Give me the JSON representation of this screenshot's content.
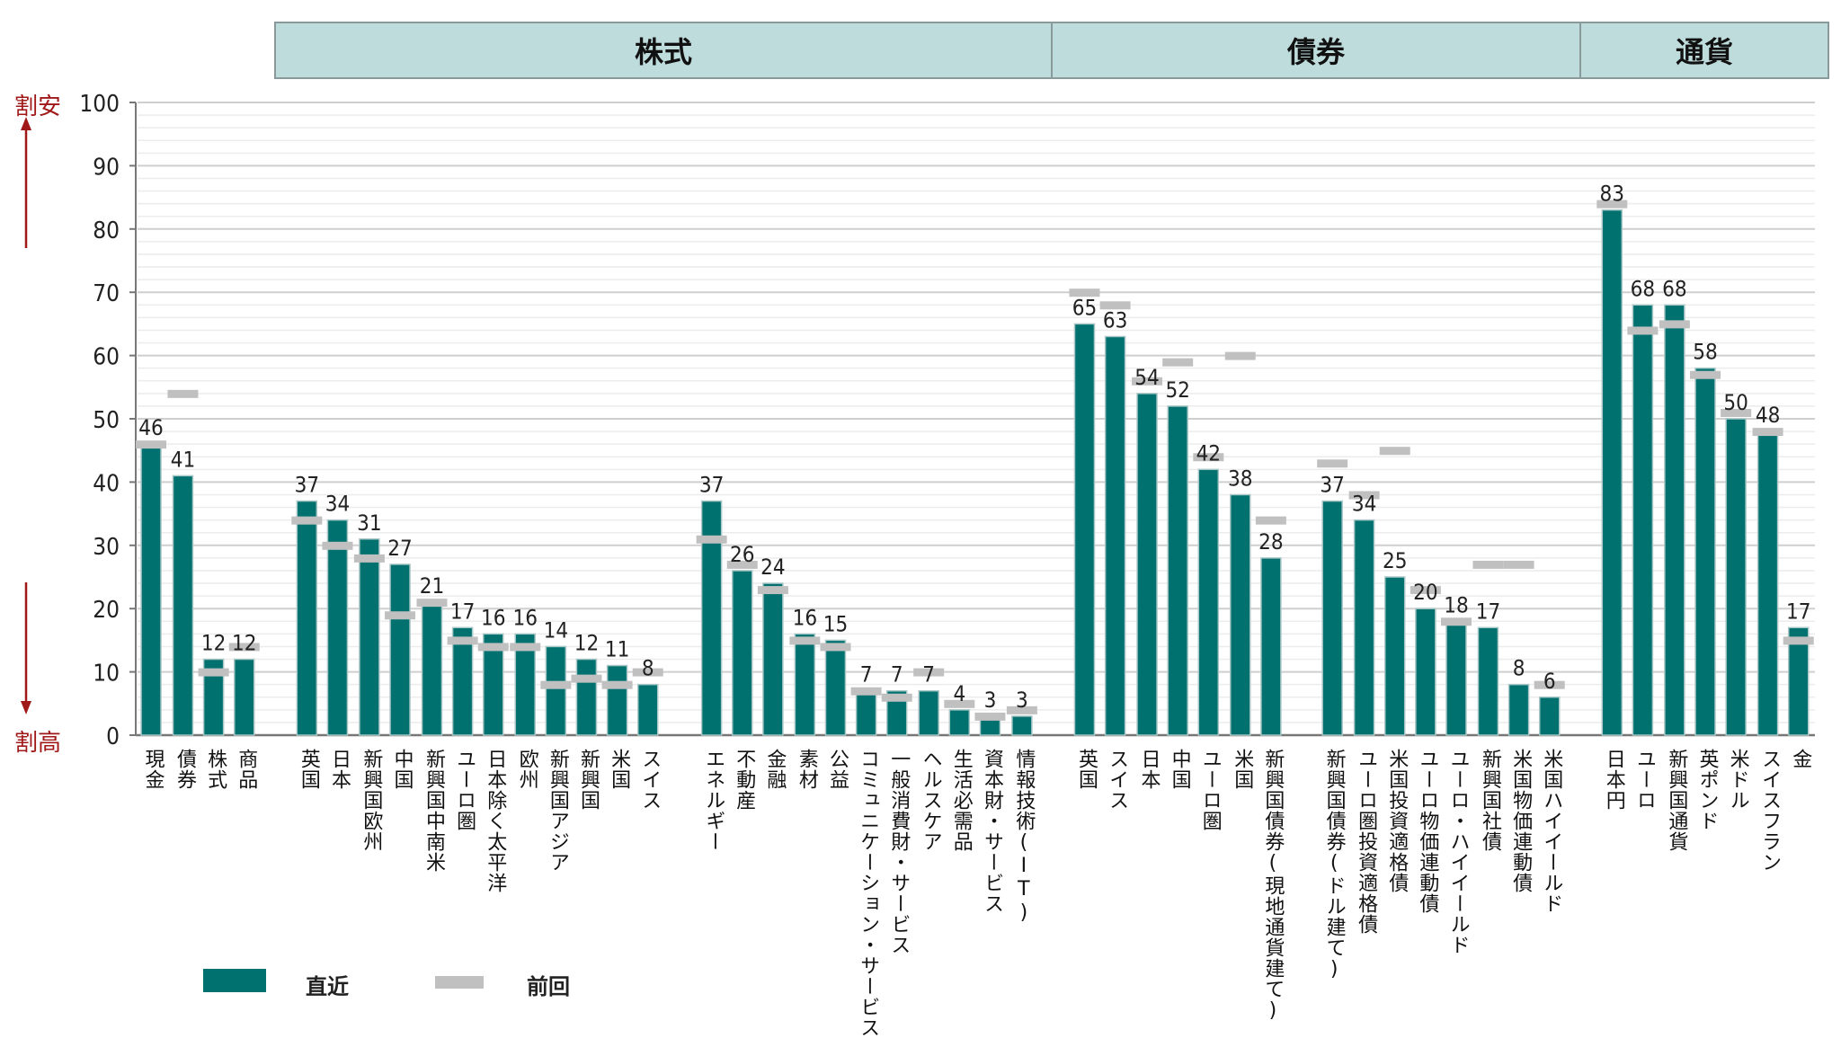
{
  "chart_data": {
    "type": "bar",
    "title": "",
    "xlabel": "",
    "ylabel": "",
    "ylim": [
      0,
      100
    ],
    "yticks": [
      "0",
      "10",
      "20",
      "30",
      "40",
      "50",
      "60",
      "70",
      "80",
      "90",
      "100"
    ],
    "top_label": "割安",
    "bottom_label": "割高",
    "groups": [
      {
        "name": "株式"
      },
      {
        "name": "債券"
      },
      {
        "name": "通貨"
      }
    ],
    "legend": [
      "直近",
      "前回"
    ],
    "colors": {
      "current": "#00716f",
      "previous": "#c0c0c0",
      "axis_note": "#a01818",
      "header_bg": "#bfdcdd"
    },
    "categories": [
      "現金",
      "債券",
      "株式",
      "商品",
      "英国",
      "日本",
      "新興国欧州",
      "中国",
      "新興国中南米",
      "ユーロ圏",
      "日本除く太平洋",
      "欧州",
      "新興国アジア",
      "新興国",
      "米国",
      "スイス",
      "エネルギー",
      "不動産",
      "金融",
      "素材",
      "公益",
      "コミュニケーション・サービス",
      "一般消費財・サービス",
      "ヘルスケア",
      "生活必需品",
      "資本財・サービス",
      "情報技術(IT)",
      "英国",
      "スイス",
      "日本",
      "中国",
      "ユーロ圏",
      "米国",
      "新興国債券(現地通貨建て)",
      "新興国債券(ドル建て)",
      "ユーロ圏投資適格債",
      "米国投資適格債",
      "ユーロ物価連動債",
      "ユーロ・ハイイールド",
      "新興国社債",
      "米国物価連動債",
      "米国ハイイールド",
      "日本円",
      "ユーロ",
      "新興国通貨",
      "英ポンド",
      "米ドル",
      "スイスフラン",
      "金"
    ],
    "series": [
      {
        "name": "直近",
        "values": [
          46,
          41,
          12,
          12,
          37,
          34,
          31,
          27,
          21,
          17,
          16,
          16,
          14,
          12,
          11,
          8,
          37,
          26,
          24,
          16,
          15,
          7,
          7,
          7,
          4,
          3,
          3,
          65,
          63,
          54,
          52,
          42,
          38,
          28,
          37,
          34,
          25,
          20,
          18,
          17,
          8,
          6,
          83,
          68,
          68,
          58,
          50,
          48,
          17
        ]
      },
      {
        "name": "前回",
        "values": [
          46,
          54,
          10,
          14,
          34,
          30,
          28,
          19,
          21,
          15,
          14,
          14,
          8,
          9,
          8,
          10,
          31,
          27,
          23,
          15,
          14,
          7,
          6,
          10,
          5,
          3,
          4,
          70,
          68,
          56,
          59,
          44,
          60,
          34,
          43,
          38,
          45,
          23,
          18,
          27,
          27,
          8,
          84,
          64,
          65,
          57,
          51,
          48,
          15
        ]
      }
    ]
  }
}
